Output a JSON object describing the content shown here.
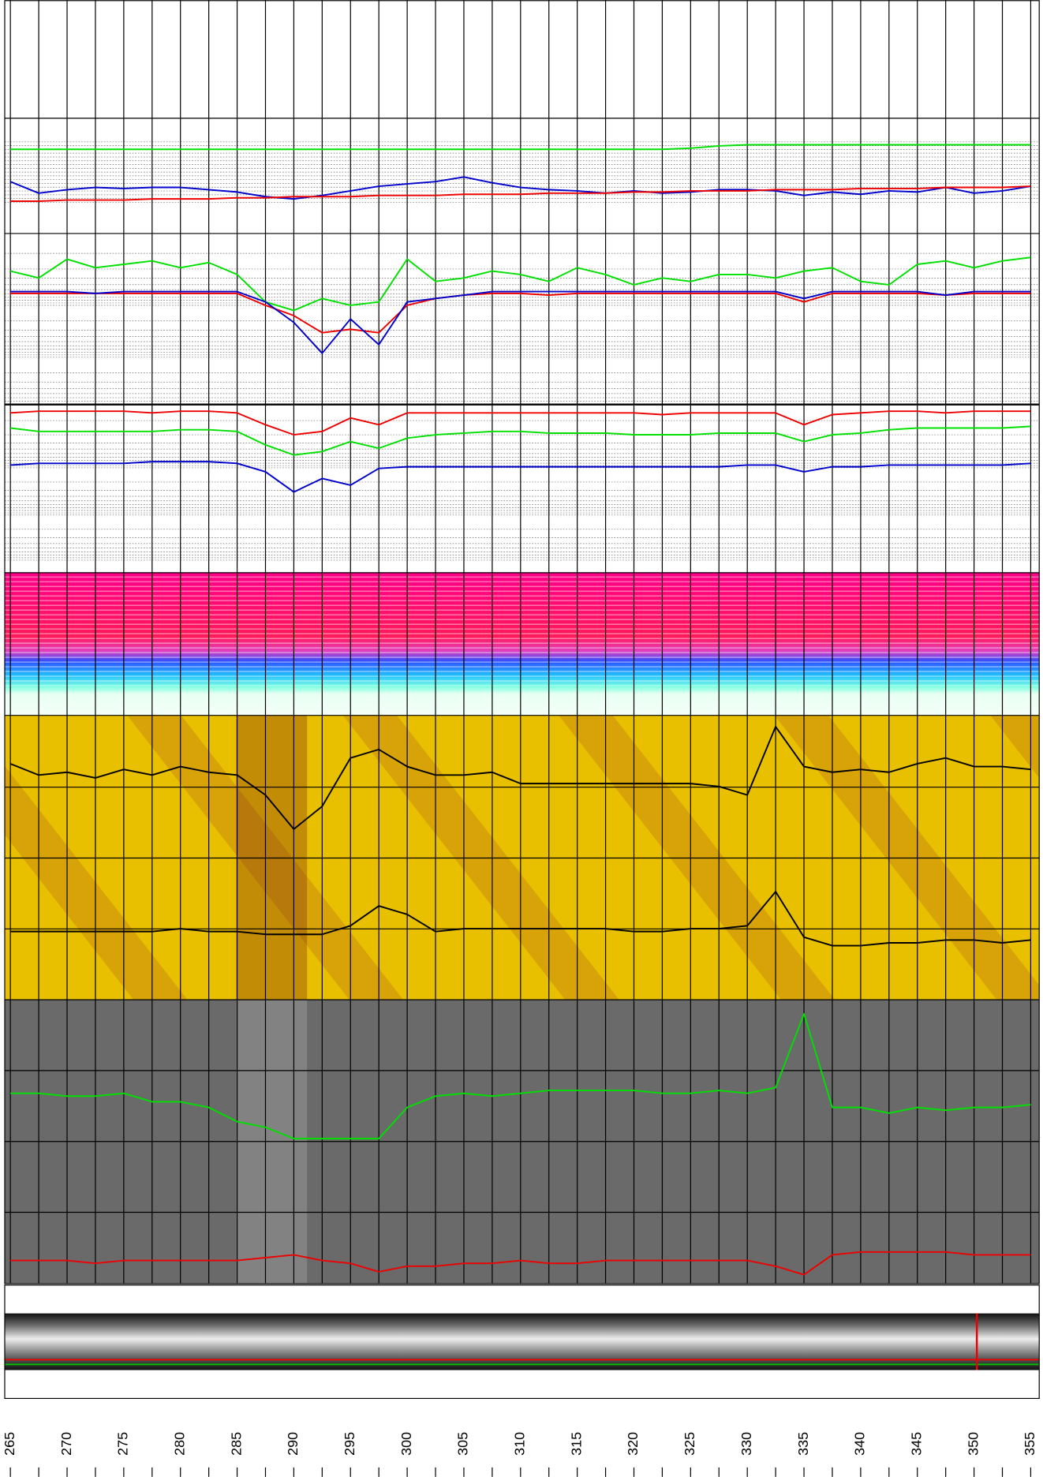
{
  "chart_data": [
    {
      "type": "line",
      "x": [
        265,
        267.5,
        270,
        272.5,
        275,
        277.5,
        280,
        282.5,
        285,
        287.5,
        290,
        292.5,
        295,
        297.5,
        300,
        302.5,
        305,
        307.5,
        310,
        312.5,
        315,
        317.5,
        320,
        322.5,
        325,
        327.5,
        330,
        332.5,
        335,
        337.5,
        340,
        342.5,
        345,
        347.5,
        350,
        352.5,
        355
      ],
      "ylim": [
        0,
        100
      ],
      "series": [
        {
          "color": "#00e000",
          "values": [
            73,
            73,
            73,
            73,
            73,
            73,
            73,
            73,
            73,
            73,
            73,
            73,
            73,
            73,
            73,
            73,
            73,
            73,
            73,
            73,
            73,
            73,
            73,
            73,
            74,
            76,
            77,
            77,
            77,
            77,
            77,
            77,
            77,
            77,
            77,
            77,
            77
          ]
        },
        {
          "color": "#0000cc",
          "values": [
            45,
            35,
            38,
            40,
            39,
            40,
            40,
            38,
            36,
            32,
            30,
            33,
            37,
            41,
            43,
            45,
            49,
            44,
            40,
            38,
            37,
            35,
            37,
            35,
            36,
            38,
            38,
            37,
            33,
            36,
            34,
            37,
            36,
            40,
            35,
            37,
            41
          ]
        },
        {
          "color": "#ee0000",
          "values": [
            28,
            28,
            29,
            29,
            29,
            30,
            30,
            30,
            31,
            31,
            32,
            32,
            32,
            33,
            33,
            33,
            34,
            34,
            34,
            35,
            35,
            35,
            36,
            36,
            37,
            37,
            37,
            38,
            38,
            38,
            39,
            39,
            39,
            40,
            40,
            40,
            41
          ]
        }
      ]
    },
    {
      "type": "line",
      "x": [
        265,
        267.5,
        270,
        272.5,
        275,
        277.5,
        280,
        282.5,
        285,
        287.5,
        290,
        292.5,
        295,
        297.5,
        300,
        302.5,
        305,
        307.5,
        310,
        312.5,
        315,
        317.5,
        320,
        322.5,
        325,
        327.5,
        330,
        332.5,
        335,
        337.5,
        340,
        342.5,
        345,
        347.5,
        350,
        352.5,
        355
      ],
      "ylim": [
        0,
        100
      ],
      "series": [
        {
          "color": "#00e000",
          "values": [
            78,
            74,
            85,
            80,
            82,
            84,
            80,
            83,
            76,
            60,
            55,
            62,
            58,
            60,
            85,
            72,
            74,
            78,
            76,
            72,
            80,
            76,
            70,
            74,
            72,
            76,
            76,
            74,
            78,
            80,
            72,
            70,
            82,
            84,
            80,
            84,
            86
          ]
        },
        {
          "color": "#ee0000",
          "values": [
            65,
            65,
            65,
            65,
            65,
            65,
            65,
            65,
            65,
            58,
            52,
            42,
            44,
            42,
            58,
            62,
            64,
            65,
            65,
            64,
            65,
            65,
            65,
            65,
            65,
            65,
            65,
            65,
            60,
            65,
            65,
            65,
            65,
            64,
            65,
            65,
            65
          ]
        },
        {
          "color": "#0000cc",
          "values": [
            66,
            66,
            66,
            65,
            66,
            66,
            66,
            66,
            66,
            60,
            48,
            30,
            50,
            35,
            60,
            62,
            64,
            66,
            66,
            66,
            66,
            66,
            66,
            66,
            66,
            66,
            66,
            66,
            62,
            66,
            66,
            66,
            66,
            64,
            66,
            66,
            66
          ]
        }
      ]
    },
    {
      "type": "line",
      "x": [
        265,
        267.5,
        270,
        272.5,
        275,
        277.5,
        280,
        282.5,
        285,
        287.5,
        290,
        292.5,
        295,
        297.5,
        300,
        302.5,
        305,
        307.5,
        310,
        312.5,
        315,
        317.5,
        320,
        322.5,
        325,
        327.5,
        330,
        332.5,
        335,
        337.5,
        340,
        342.5,
        345,
        347.5,
        350,
        352.5,
        355
      ],
      "ylim": [
        0,
        100
      ],
      "series": [
        {
          "color": "#ee0000",
          "values": [
            95,
            96,
            96,
            96,
            96,
            95,
            96,
            96,
            95,
            88,
            82,
            84,
            92,
            88,
            95,
            95,
            95,
            95,
            95,
            95,
            95,
            95,
            95,
            94,
            95,
            95,
            95,
            95,
            88,
            94,
            95,
            96,
            96,
            95,
            96,
            96,
            96
          ]
        },
        {
          "color": "#00e000",
          "values": [
            86,
            84,
            84,
            84,
            84,
            84,
            85,
            85,
            84,
            76,
            70,
            72,
            78,
            74,
            80,
            82,
            83,
            84,
            84,
            83,
            83,
            83,
            82,
            82,
            82,
            83,
            83,
            83,
            78,
            82,
            83,
            85,
            86,
            86,
            86,
            86,
            87
          ]
        },
        {
          "color": "#0000cc",
          "values": [
            64,
            65,
            65,
            65,
            65,
            66,
            66,
            66,
            65,
            60,
            48,
            56,
            52,
            62,
            63,
            63,
            63,
            63,
            63,
            63,
            63,
            63,
            63,
            63,
            63,
            63,
            64,
            64,
            60,
            63,
            63,
            64,
            64,
            64,
            64,
            64,
            65
          ]
        }
      ]
    },
    {
      "type": "line",
      "x": [
        265,
        267.5,
        270,
        272.5,
        275,
        277.5,
        280,
        282.5,
        285,
        287.5,
        290,
        292.5,
        295,
        297.5,
        300,
        302.5,
        305,
        307.5,
        310,
        312.5,
        315,
        317.5,
        320,
        322.5,
        325,
        327.5,
        330,
        332.5,
        335,
        337.5,
        340,
        342.5,
        345,
        347.5,
        350,
        352.5,
        355
      ],
      "ylim": [
        0,
        100
      ],
      "series": [
        {
          "color": "#000000",
          "values": [
            83,
            79,
            80,
            78,
            81,
            79,
            82,
            80,
            79,
            72,
            60,
            68,
            85,
            88,
            82,
            79,
            79,
            80,
            76,
            76,
            76,
            76,
            76,
            76,
            76,
            75,
            72,
            96,
            82,
            80,
            81,
            80,
            83,
            85,
            82,
            82,
            81
          ]
        },
        {
          "color": "#000000",
          "values": [
            24,
            24,
            24,
            24,
            24,
            24,
            25,
            24,
            24,
            23,
            23,
            23,
            26,
            33,
            30,
            24,
            25,
            25,
            25,
            25,
            25,
            25,
            24,
            24,
            25,
            25,
            26,
            38,
            22,
            19,
            19,
            20,
            20,
            21,
            21,
            20,
            21
          ]
        }
      ]
    },
    {
      "type": "line",
      "x": [
        265,
        267.5,
        270,
        272.5,
        275,
        277.5,
        280,
        282.5,
        285,
        287.5,
        290,
        292.5,
        295,
        297.5,
        300,
        302.5,
        305,
        307.5,
        310,
        312.5,
        315,
        317.5,
        320,
        322.5,
        325,
        327.5,
        330,
        332.5,
        335,
        337.5,
        340,
        342.5,
        345,
        347.5,
        350,
        352.5,
        355
      ],
      "ylim": [
        0,
        100
      ],
      "series": [
        {
          "color": "#00e000",
          "values": [
            67,
            67,
            66,
            66,
            67,
            64,
            64,
            62,
            57,
            55,
            51,
            51,
            51,
            51,
            62,
            66,
            67,
            66,
            67,
            68,
            68,
            68,
            68,
            67,
            67,
            68,
            67,
            69,
            95,
            62,
            62,
            60,
            62,
            61,
            62,
            62,
            63
          ]
        },
        {
          "color": "#ee0000",
          "values": [
            8,
            8,
            8,
            7,
            8,
            8,
            8,
            8,
            8,
            9,
            10,
            8,
            7,
            4,
            6,
            6,
            7,
            7,
            8,
            7,
            7,
            8,
            8,
            8,
            8,
            8,
            8,
            6,
            3,
            10,
            11,
            11,
            11,
            11,
            10,
            10,
            10
          ]
        }
      ]
    },
    {
      "type": "depth-axis",
      "xlim": [
        264.5,
        355.75
      ],
      "xticks": [
        265,
        270,
        275,
        280,
        285,
        290,
        295,
        300,
        305,
        310,
        315,
        320,
        325,
        330,
        335,
        340,
        345,
        350,
        355
      ],
      "minor_xticks": [
        267.5,
        272.5,
        277.5,
        282.5,
        287.5,
        292.5,
        297.5,
        302.5,
        307.5,
        312.5,
        317.5,
        322.5,
        327.5,
        332.5,
        337.5,
        342.5,
        347.5,
        352.5
      ]
    }
  ]
}
